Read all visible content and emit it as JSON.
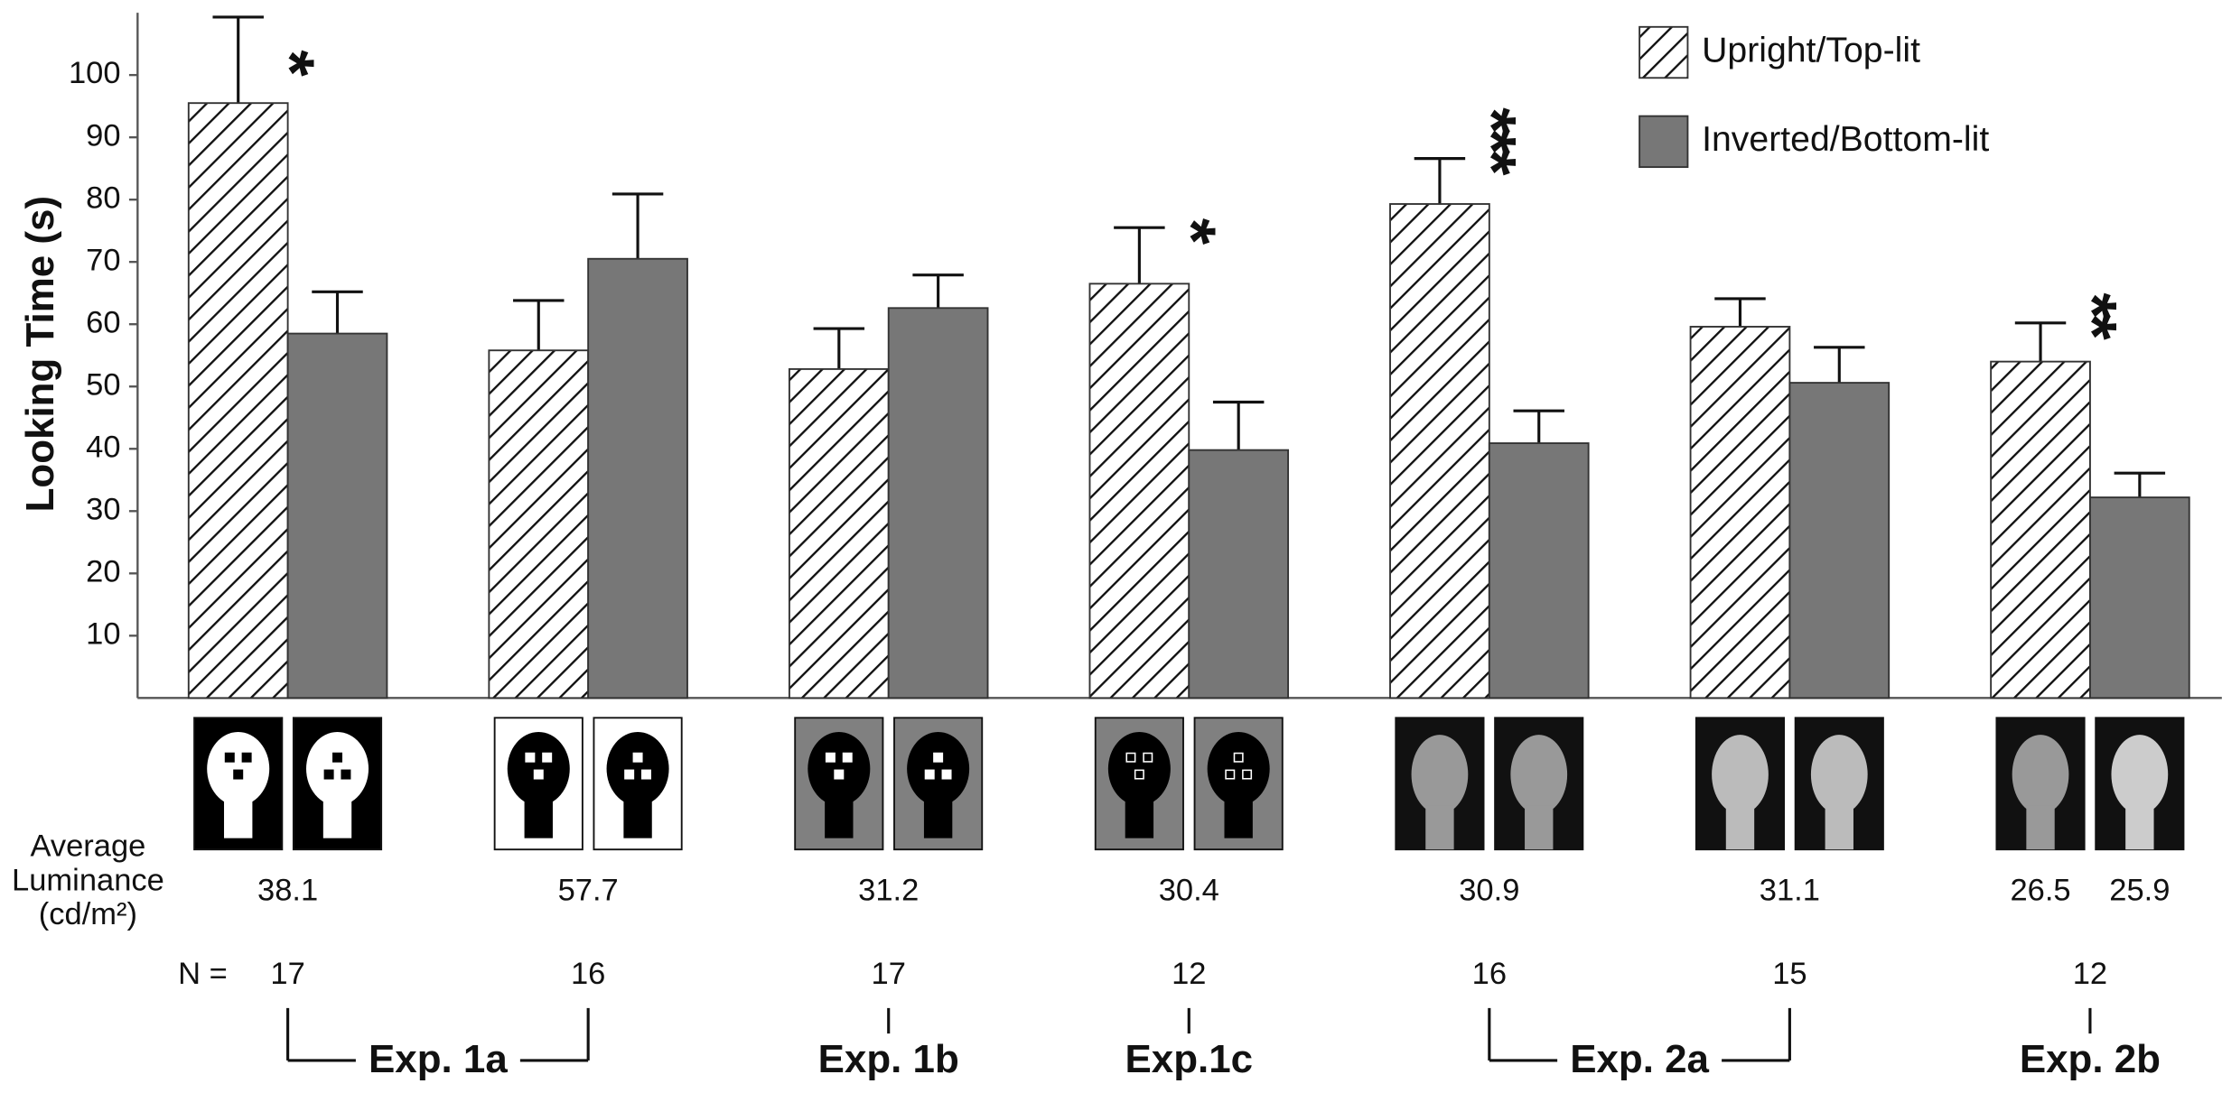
{
  "chart_data": {
    "type": "bar",
    "y_label": "Looking Time (s)",
    "ylim": [
      0,
      110
    ],
    "yticks": [
      10,
      20,
      30,
      40,
      50,
      60,
      70,
      80,
      90,
      100
    ],
    "legend": "top-right",
    "series": [
      {
        "name": "Upright/Top-lit",
        "color": "#ffffff",
        "pattern": "hatch",
        "values": [
          95.5,
          55.8,
          52.8,
          66.5,
          79.3,
          59.6,
          54.0
        ],
        "errors": [
          13.8,
          8.0,
          6.5,
          9.0,
          7.3,
          4.5,
          6.2
        ]
      },
      {
        "name": "Inverted/Bottom-lit",
        "color": "#777777",
        "values": [
          58.5,
          70.5,
          62.6,
          39.8,
          40.9,
          50.6,
          32.2
        ],
        "errors": [
          6.7,
          10.4,
          5.3,
          7.7,
          5.2,
          5.7,
          3.9
        ]
      }
    ],
    "significance": [
      "*",
      null,
      null,
      "*",
      "***",
      null,
      "**"
    ],
    "luminance_label": [
      "Average",
      "Luminance",
      "(cd/m²)"
    ],
    "luminance": [
      [
        38.1
      ],
      [
        57.7
      ],
      [
        31.2
      ],
      [
        30.4
      ],
      [
        30.9
      ],
      [
        31.1
      ],
      [
        26.5,
        25.9
      ]
    ],
    "n_label": "N =",
    "n": [
      17,
      16,
      17,
      12,
      16,
      15,
      12
    ],
    "experiment": [
      "Exp. 1a",
      "Exp. 1a",
      "Exp. 1b",
      "Exp.1c",
      "Exp. 2a",
      "Exp. 2a",
      "Exp. 2b"
    ]
  }
}
